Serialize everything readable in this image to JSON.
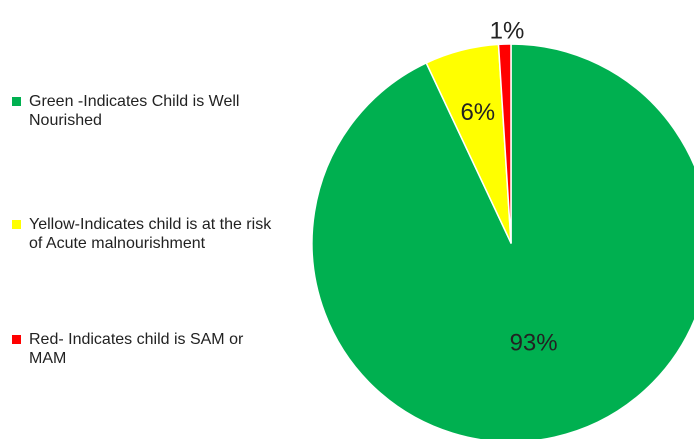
{
  "chart_data": {
    "type": "pie",
    "title": "",
    "slices": [
      {
        "label": "Green -Indicates Child is Well Nourished",
        "value": 93,
        "data_label": "93%",
        "color": "#00b050"
      },
      {
        "label": "Yellow-Indicates child is at the risk of Acute malnourishment",
        "value": 6,
        "data_label": "6%",
        "color": "#ffff00"
      },
      {
        "label": "Red- Indicates child is SAM or MAM",
        "value": 1,
        "data_label": "1%",
        "color": "#ff0000"
      }
    ],
    "legend_position": "left"
  }
}
